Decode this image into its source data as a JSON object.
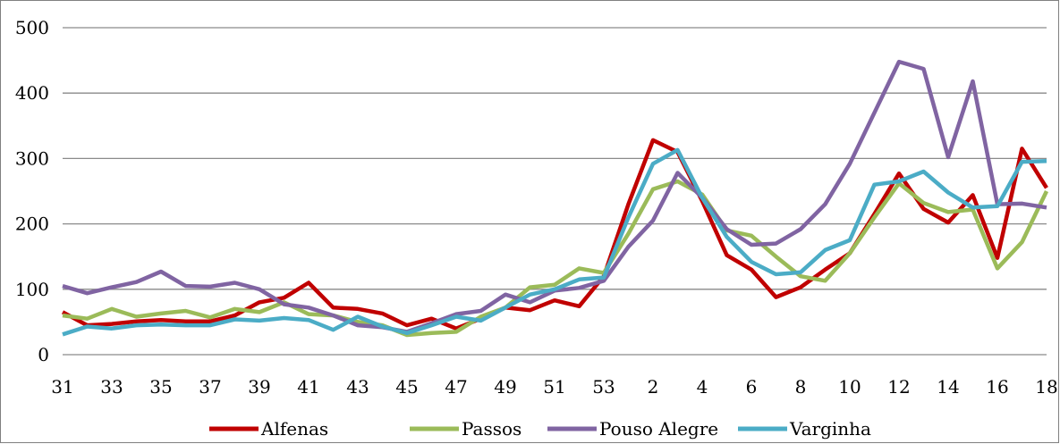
{
  "chart_data": {
    "type": "line",
    "title": "",
    "xlabel": "",
    "ylabel": "",
    "ylim": [
      0,
      500
    ],
    "yticks": [
      0,
      100,
      200,
      300,
      400,
      500
    ],
    "grid": true,
    "legend_position": "bottom",
    "categories": [
      "31",
      "32",
      "33",
      "34",
      "35",
      "36",
      "37",
      "38",
      "39",
      "40",
      "41",
      "42",
      "43",
      "44",
      "45",
      "46",
      "47",
      "48",
      "49",
      "50",
      "51",
      "52",
      "53",
      "1",
      "2",
      "3",
      "4",
      "5",
      "6",
      "7",
      "8",
      "9",
      "10",
      "11",
      "12",
      "13",
      "14",
      "15",
      "16",
      "17",
      "18"
    ],
    "x_tick_labels": [
      "31",
      "33",
      "35",
      "37",
      "39",
      "41",
      "43",
      "45",
      "47",
      "49",
      "51",
      "53",
      "2",
      "4",
      "6",
      "8",
      "10",
      "12",
      "14",
      "16",
      "18"
    ],
    "series": [
      {
        "name": "Alfenas",
        "color": "#c00000",
        "values": [
          65,
          45,
          47,
          51,
          53,
          51,
          51,
          60,
          80,
          87,
          110,
          72,
          70,
          63,
          45,
          55,
          40,
          55,
          72,
          68,
          83,
          74,
          120,
          230,
          328,
          310,
          235,
          152,
          130,
          88,
          103,
          130,
          155,
          215,
          277,
          223,
          202,
          244,
          148,
          315,
          255
        ]
      },
      {
        "name": "Passos",
        "color": "#9bbb59",
        "values": [
          60,
          55,
          70,
          58,
          63,
          67,
          57,
          70,
          65,
          80,
          62,
          60,
          50,
          45,
          30,
          33,
          35,
          58,
          72,
          103,
          107,
          132,
          125,
          185,
          253,
          265,
          245,
          190,
          182,
          150,
          120,
          113,
          155,
          210,
          262,
          232,
          218,
          222,
          132,
          172,
          250
        ]
      },
      {
        "name": "Pouso Alegre",
        "color": "#8064a2",
        "values": [
          105,
          94,
          103,
          111,
          127,
          105,
          104,
          110,
          100,
          77,
          72,
          60,
          45,
          42,
          35,
          48,
          62,
          67,
          92,
          80,
          98,
          102,
          113,
          165,
          205,
          278,
          240,
          192,
          168,
          170,
          192,
          230,
          292,
          370,
          448,
          437,
          302,
          418,
          230,
          231,
          225
        ]
      },
      {
        "name": "Varginha",
        "color": "#4bacc6",
        "values": [
          31,
          43,
          40,
          45,
          46,
          45,
          45,
          54,
          52,
          56,
          53,
          38,
          58,
          43,
          33,
          45,
          58,
          52,
          72,
          92,
          100,
          115,
          118,
          210,
          292,
          313,
          240,
          180,
          142,
          123,
          126,
          160,
          175,
          260,
          265,
          280,
          248,
          225,
          227,
          295,
          296
        ]
      }
    ]
  }
}
